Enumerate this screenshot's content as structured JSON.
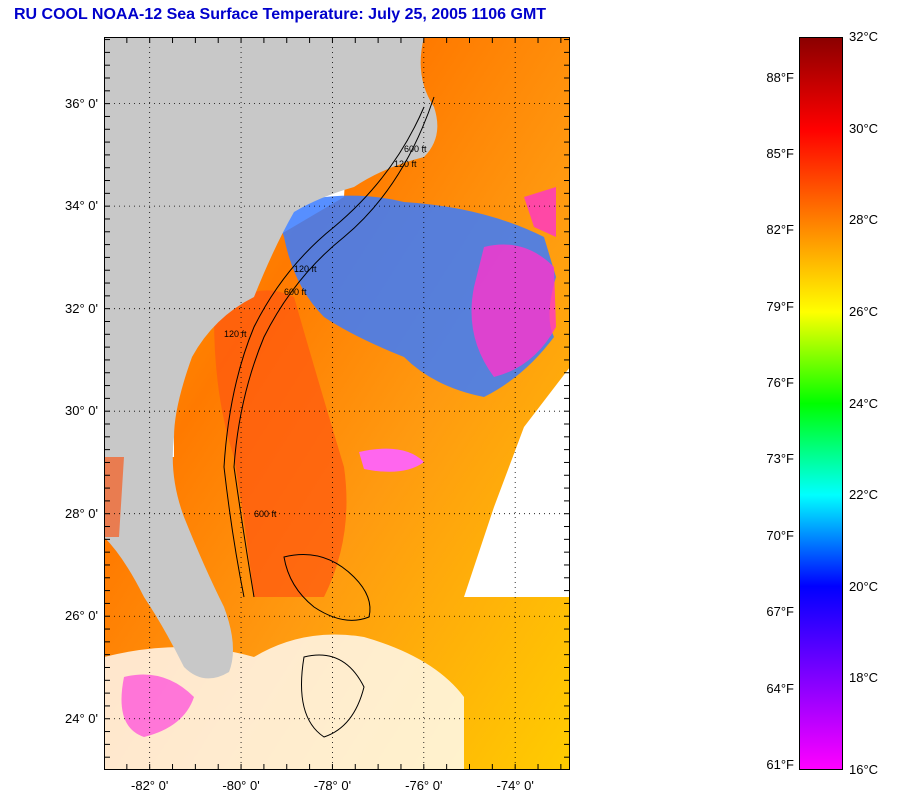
{
  "title": "RU COOL  NOAA-12  Sea Surface Temperature:  July 25, 2005 1106 GMT",
  "map": {
    "lat_labels": [
      {
        "text": "36° 0'",
        "value": 36
      },
      {
        "text": "34° 0'",
        "value": 34
      },
      {
        "text": "32° 0'",
        "value": 32
      },
      {
        "text": "30° 0'",
        "value": 30
      },
      {
        "text": "28° 0'",
        "value": 28
      },
      {
        "text": "26° 0'",
        "value": 26
      },
      {
        "text": "24° 0'",
        "value": 24
      }
    ],
    "lon_labels": [
      {
        "text": "-82° 0'",
        "value": -82
      },
      {
        "text": "-80° 0'",
        "value": -80
      },
      {
        "text": "-78° 0'",
        "value": -78
      },
      {
        "text": "-76° 0'",
        "value": -76
      },
      {
        "text": "-74° 0'",
        "value": -74
      }
    ],
    "lat_range": [
      23,
      37.3
    ],
    "lon_range": [
      -83,
      -72.8
    ],
    "contour_labels": [
      "120 ft",
      "600 ft",
      "120 ft",
      "600 ft",
      "120 ft",
      "600 ft"
    ],
    "colors": {
      "land": "#c8c8c8",
      "nodata": "#ffffff",
      "grid": "#000000"
    }
  },
  "colorbar": {
    "celsius": [
      "32°C",
      "30°C",
      "28°C",
      "26°C",
      "24°C",
      "22°C",
      "20°C",
      "18°C",
      "16°C"
    ],
    "fahrenheit": [
      "88°F",
      "85°F",
      "82°F",
      "79°F",
      "76°F",
      "73°F",
      "70°F",
      "67°F",
      "64°F",
      "61°F"
    ],
    "fahrenheit_values": [
      88,
      85,
      82,
      79,
      76,
      73,
      70,
      67,
      64,
      61
    ],
    "range_c": [
      16,
      32
    ],
    "stops": [
      "#8b0000",
      "#ff0000",
      "#ff7f00",
      "#ffff00",
      "#00ff00",
      "#00ffff",
      "#0000ff",
      "#8000ff",
      "#ff00ff"
    ]
  }
}
